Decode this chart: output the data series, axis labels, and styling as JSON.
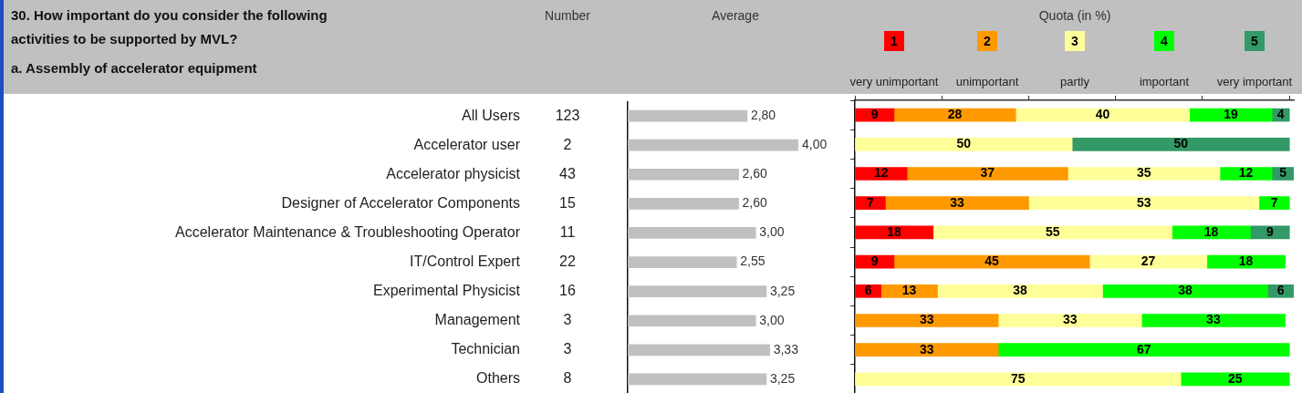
{
  "chart_data": [
    {
      "type": "other",
      "title": "30. How important do you consider the following activities to be supported by MVL?",
      "subtitle": "a. Assembly of accelerator equipment",
      "xlabel": "Number",
      "categories": [
        "All Users",
        "Accelerator user",
        "Accelerator physicist",
        "Designer of Accelerator Components",
        "Accelerator Maintenance & Troubleshooting Operator",
        "IT/Control Expert",
        "Experimental Physicist",
        "Management",
        "Technician",
        "Others"
      ],
      "annotations": [
        "123",
        "2",
        "43",
        "15",
        "11",
        "22",
        "16",
        "3",
        "3",
        "8"
      ]
    },
    {
      "type": "bar",
      "orientation": "horizontal",
      "title": "Average",
      "categories": [
        null,
        null,
        null,
        null,
        null,
        null,
        null,
        null,
        null,
        null
      ],
      "values": [
        2.8,
        4.0,
        2.6,
        2.6,
        3.0,
        2.55,
        3.25,
        3.0,
        3.33,
        3.25
      ],
      "color": "#c0c0c0",
      "value_labels": [
        "2,80",
        "4,00",
        "2,60",
        "2,60",
        "3,00",
        "2,55",
        "3,25",
        "3,00",
        "3,33",
        "3,25"
      ],
      "tick_labels": false
    },
    {
      "type": "bar",
      "orientation": "horizontal",
      "stacked": true,
      "title": "Quota (in %)",
      "categories": [
        null,
        null,
        null,
        null,
        null,
        null,
        null,
        null,
        null,
        null
      ],
      "series": [
        {
          "name": "very unimportant",
          "color": "#ff0000",
          "values": [
            9,
            null,
            12,
            7,
            18,
            9,
            6,
            null,
            null,
            null
          ]
        },
        {
          "name": "unimportant",
          "color": "#ff9900",
          "values": [
            28,
            null,
            37,
            33,
            null,
            45,
            13,
            33,
            33,
            null
          ]
        },
        {
          "name": "partly",
          "color": "#ffff99",
          "values": [
            40,
            50,
            35,
            53,
            55,
            27,
            38,
            33,
            null,
            75
          ]
        },
        {
          "name": "important",
          "color": "#00ff00",
          "values": [
            19,
            null,
            12,
            7,
            18,
            18,
            38,
            33,
            67,
            25
          ]
        },
        {
          "name": "very important",
          "color": "#339966",
          "values": [
            4,
            50,
            5,
            null,
            9,
            null,
            6,
            null,
            null,
            null
          ]
        }
      ],
      "annotations": [
        "1",
        "2",
        "3",
        "4",
        "5"
      ],
      "xlim": [
        0,
        101
      ],
      "xticks": [
        {
          "value": 0,
          "label": null
        },
        {
          "value": 20,
          "label": null
        },
        {
          "value": 40,
          "label": null
        },
        {
          "value": 60,
          "label": null
        },
        {
          "value": 80,
          "label": null
        },
        {
          "value": 100,
          "label": null
        }
      ],
      "tick_labels": false,
      "data_labels": true,
      "legend": "top"
    }
  ]
}
